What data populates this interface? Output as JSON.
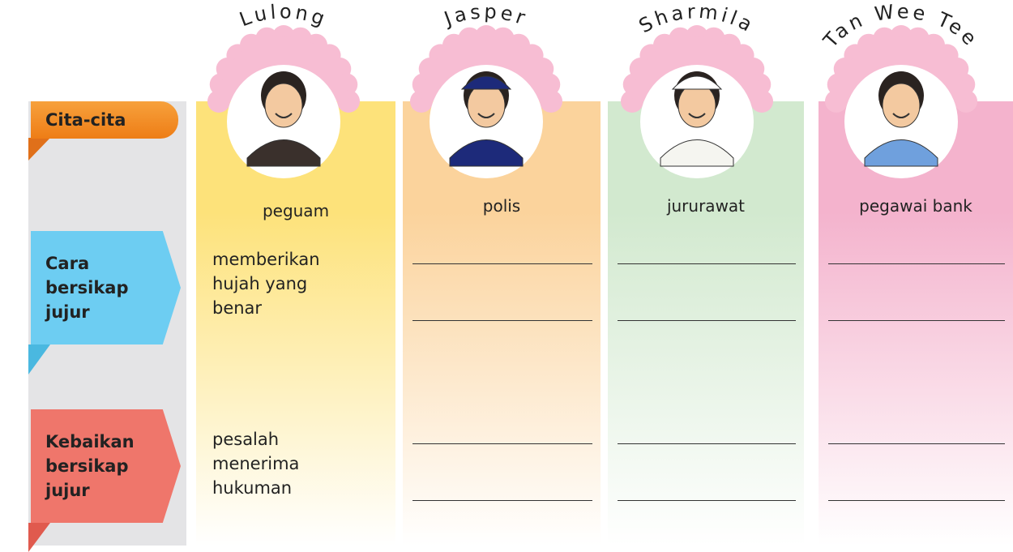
{
  "labels": {
    "goal": [
      "Cita-cita"
    ],
    "honesty": [
      "Cara",
      "bersikap",
      "jujur"
    ],
    "benefit": [
      "Kebaikan",
      "bersikap",
      "jujur"
    ]
  },
  "columns": [
    {
      "name": "Lulong",
      "occupation": "peguam",
      "honesty": [
        "memberikan",
        "hujah yang",
        "benar"
      ],
      "benefit": [
        "pesalah",
        "menerima",
        "hukuman"
      ]
    },
    {
      "name": "Jasper",
      "occupation": "polis"
    },
    {
      "name": "Sharmila",
      "occupation": "jururawat"
    },
    {
      "name": "Tan Wee Tee",
      "occupation": "pegawai bank"
    }
  ]
}
